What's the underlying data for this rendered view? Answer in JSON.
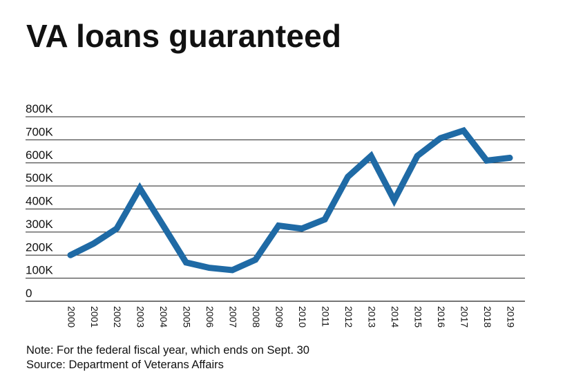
{
  "title": "VA loans guaranteed",
  "notes": {
    "note": "Note: For the federal fiscal year, which ends on Sept. 30",
    "source": "Source: Department of Veterans Affairs"
  },
  "colors": {
    "line": "#1f6aa5",
    "grid": "#222222",
    "text": "#111111"
  },
  "chart_data": {
    "type": "line",
    "title": "VA loans guaranteed",
    "xlabel": "",
    "ylabel": "",
    "ylim": [
      0,
      800000
    ],
    "grid": true,
    "y_ticks": [
      0,
      100000,
      200000,
      300000,
      400000,
      500000,
      600000,
      700000,
      800000
    ],
    "y_tick_labels": [
      "0",
      "100K",
      "200K",
      "300K",
      "400K",
      "500K",
      "600K",
      "700K",
      "800K"
    ],
    "categories": [
      "2000",
      "2001",
      "2002",
      "2003",
      "2004",
      "2005",
      "2006",
      "2007",
      "2008",
      "2009",
      "2010",
      "2011",
      "2012",
      "2013",
      "2014",
      "2015",
      "2016",
      "2017",
      "2018",
      "2019"
    ],
    "series": [
      {
        "name": "VA loans guaranteed",
        "values": [
          200000,
          250000,
          315000,
          490000,
          330000,
          168000,
          145000,
          135000,
          180000,
          328000,
          315000,
          355000,
          540000,
          630000,
          438000,
          630000,
          707000,
          740000,
          610000,
          622000
        ]
      }
    ]
  }
}
